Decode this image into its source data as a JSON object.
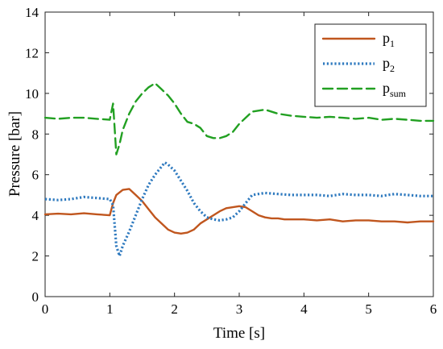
{
  "chart_data": {
    "type": "line",
    "xlabel": "Time [s]",
    "ylabel": "Pressure [bar]",
    "xlim": [
      0,
      6
    ],
    "ylim": [
      0,
      14
    ],
    "xticks": [
      "0",
      "1",
      "2",
      "3",
      "4",
      "5",
      "6"
    ],
    "yticks": [
      "0",
      "2",
      "4",
      "6",
      "8",
      "10",
      "12",
      "14"
    ],
    "grid": false,
    "legend_position": "top-right",
    "series": [
      {
        "name": "p1",
        "name_main": "p",
        "name_sub": "1",
        "color": "#c0561e",
        "style": "solid",
        "x": [
          0,
          0.2,
          0.4,
          0.6,
          0.8,
          1.0,
          1.05,
          1.1,
          1.2,
          1.3,
          1.4,
          1.5,
          1.6,
          1.7,
          1.8,
          1.9,
          2.0,
          2.1,
          2.2,
          2.3,
          2.4,
          2.5,
          2.6,
          2.7,
          2.8,
          2.9,
          3.0,
          3.1,
          3.2,
          3.3,
          3.4,
          3.5,
          3.6,
          3.7,
          3.8,
          4.0,
          4.2,
          4.4,
          4.6,
          4.8,
          5.0,
          5.2,
          5.4,
          5.6,
          5.8,
          6.0
        ],
        "y": [
          4.05,
          4.08,
          4.05,
          4.1,
          4.05,
          4.0,
          4.6,
          5.0,
          5.25,
          5.3,
          5.0,
          4.7,
          4.3,
          3.9,
          3.6,
          3.3,
          3.15,
          3.1,
          3.15,
          3.3,
          3.6,
          3.8,
          4.0,
          4.2,
          4.35,
          4.4,
          4.45,
          4.4,
          4.2,
          4.0,
          3.9,
          3.85,
          3.85,
          3.8,
          3.8,
          3.8,
          3.75,
          3.8,
          3.7,
          3.75,
          3.75,
          3.7,
          3.7,
          3.65,
          3.7,
          3.7
        ]
      },
      {
        "name": "p2",
        "name_main": "p",
        "name_sub": "2",
        "color": "#2f7abf",
        "style": "dotted",
        "x": [
          0,
          0.2,
          0.4,
          0.6,
          0.8,
          1.0,
          1.05,
          1.1,
          1.15,
          1.2,
          1.3,
          1.4,
          1.5,
          1.6,
          1.7,
          1.8,
          1.85,
          1.9,
          2.0,
          2.1,
          2.2,
          2.3,
          2.4,
          2.5,
          2.6,
          2.7,
          2.8,
          2.9,
          3.0,
          3.1,
          3.2,
          3.4,
          3.6,
          3.8,
          4.0,
          4.2,
          4.4,
          4.6,
          4.8,
          5.0,
          5.2,
          5.4,
          5.6,
          5.8,
          6.0
        ],
        "y": [
          4.8,
          4.75,
          4.8,
          4.9,
          4.85,
          4.8,
          4.5,
          2.5,
          2.0,
          2.5,
          3.2,
          4.0,
          4.8,
          5.5,
          6.0,
          6.4,
          6.6,
          6.5,
          6.2,
          5.7,
          5.2,
          4.6,
          4.2,
          3.9,
          3.8,
          3.75,
          3.8,
          3.9,
          4.2,
          4.6,
          5.0,
          5.1,
          5.05,
          5.0,
          5.0,
          5.0,
          4.95,
          5.05,
          5.0,
          5.0,
          4.95,
          5.05,
          5.0,
          4.95,
          4.95
        ]
      },
      {
        "name": "psum",
        "name_main": "p",
        "name_sub": "sum",
        "color": "#22a022",
        "style": "dashed",
        "x": [
          0,
          0.2,
          0.4,
          0.6,
          0.8,
          1.0,
          1.05,
          1.1,
          1.15,
          1.2,
          1.3,
          1.4,
          1.5,
          1.6,
          1.7,
          1.8,
          1.9,
          2.0,
          2.1,
          2.2,
          2.3,
          2.4,
          2.5,
          2.6,
          2.7,
          2.8,
          2.9,
          3.0,
          3.1,
          3.2,
          3.4,
          3.6,
          3.8,
          4.0,
          4.2,
          4.4,
          4.6,
          4.8,
          5.0,
          5.2,
          5.4,
          5.6,
          5.8,
          6.0
        ],
        "y": [
          8.8,
          8.75,
          8.8,
          8.8,
          8.75,
          8.7,
          9.5,
          7.0,
          7.5,
          8.2,
          9.0,
          9.6,
          10.0,
          10.3,
          10.5,
          10.2,
          9.9,
          9.5,
          9.0,
          8.6,
          8.5,
          8.3,
          7.9,
          7.8,
          7.8,
          7.9,
          8.1,
          8.5,
          8.8,
          9.1,
          9.2,
          9.0,
          8.9,
          8.85,
          8.8,
          8.85,
          8.8,
          8.75,
          8.8,
          8.7,
          8.75,
          8.7,
          8.65,
          8.65
        ]
      }
    ]
  }
}
